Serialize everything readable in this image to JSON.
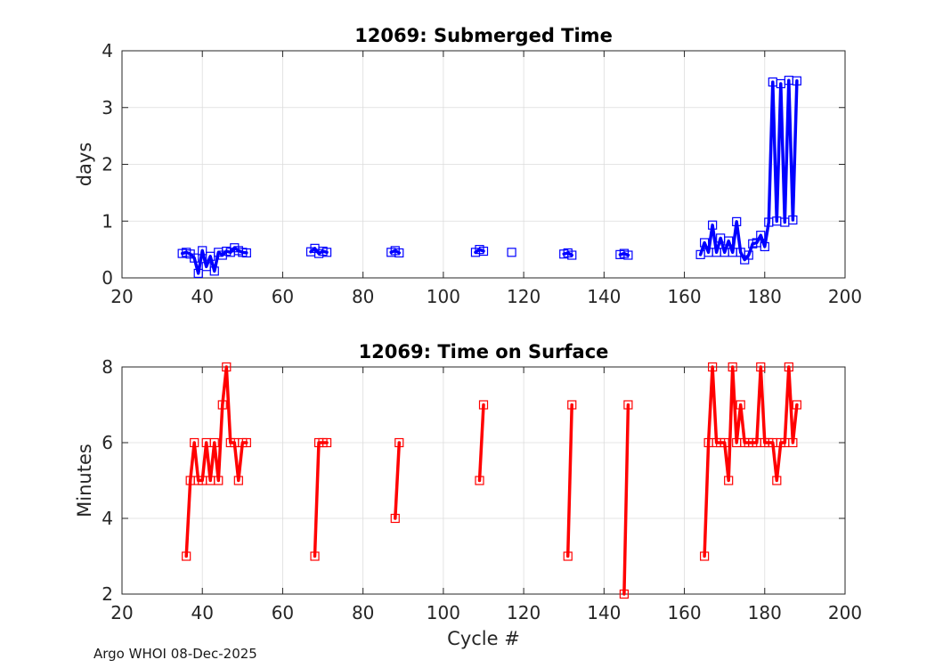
{
  "footer": "Argo WHOI 08-Dec-2025",
  "chart_data": [
    {
      "type": "line",
      "title": "12069: Submerged Time",
      "xlabel": "",
      "ylabel": "days",
      "xlim": [
        20,
        200
      ],
      "ylim": [
        0,
        4
      ],
      "xticks": [
        "20",
        "40",
        "60",
        "80",
        "100",
        "120",
        "140",
        "160",
        "180",
        "200"
      ],
      "yticks": [
        "0",
        "1",
        "2",
        "3",
        "4"
      ],
      "grid": true,
      "color": "#0000ff",
      "marker": "square",
      "segments": [
        [
          [
            35,
            0.43
          ],
          [
            36,
            0.45
          ],
          [
            37,
            0.42
          ],
          [
            38,
            0.35
          ],
          [
            39,
            0.08
          ],
          [
            40,
            0.48
          ],
          [
            41,
            0.2
          ],
          [
            42,
            0.38
          ],
          [
            43,
            0.12
          ],
          [
            44,
            0.45
          ],
          [
            45,
            0.4
          ],
          [
            46,
            0.47
          ],
          [
            47,
            0.45
          ],
          [
            48,
            0.53
          ],
          [
            49,
            0.48
          ],
          [
            50,
            0.45
          ],
          [
            51,
            0.44
          ]
        ],
        [
          [
            67,
            0.46
          ],
          [
            68,
            0.52
          ],
          [
            69,
            0.43
          ],
          [
            70,
            0.47
          ],
          [
            71,
            0.45
          ]
        ],
        [
          [
            87,
            0.45
          ],
          [
            88,
            0.48
          ],
          [
            89,
            0.44
          ]
        ],
        [
          [
            108,
            0.45
          ],
          [
            109,
            0.5
          ],
          [
            110,
            0.47
          ]
        ],
        [
          [
            117,
            0.45
          ]
        ],
        [
          [
            130,
            0.42
          ],
          [
            131,
            0.44
          ],
          [
            132,
            0.4
          ]
        ],
        [
          [
            144,
            0.41
          ],
          [
            145,
            0.43
          ],
          [
            146,
            0.4
          ]
        ],
        [
          [
            164,
            0.41
          ],
          [
            165,
            0.62
          ],
          [
            166,
            0.45
          ],
          [
            167,
            0.93
          ],
          [
            168,
            0.45
          ],
          [
            169,
            0.7
          ],
          [
            170,
            0.45
          ],
          [
            171,
            0.65
          ],
          [
            172,
            0.45
          ],
          [
            173,
            0.99
          ],
          [
            174,
            0.45
          ],
          [
            175,
            0.32
          ],
          [
            176,
            0.4
          ],
          [
            177,
            0.6
          ],
          [
            178,
            0.62
          ],
          [
            179,
            0.75
          ],
          [
            180,
            0.55
          ],
          [
            181,
            0.98
          ],
          [
            182,
            3.45
          ],
          [
            183,
            1.0
          ],
          [
            184,
            3.42
          ],
          [
            185,
            0.98
          ],
          [
            186,
            3.48
          ],
          [
            187,
            1.02
          ],
          [
            188,
            3.47
          ]
        ]
      ]
    },
    {
      "type": "line",
      "title": "12069: Time on Surface",
      "xlabel": "Cycle #",
      "ylabel": "Minutes",
      "xlim": [
        20,
        200
      ],
      "ylim": [
        2,
        8
      ],
      "xticks": [
        "20",
        "40",
        "60",
        "80",
        "100",
        "120",
        "140",
        "160",
        "180",
        "200"
      ],
      "yticks": [
        "2",
        "4",
        "6",
        "8"
      ],
      "grid": true,
      "color": "#ff0000",
      "marker": "square",
      "segments": [
        [
          [
            36,
            3
          ],
          [
            37,
            5
          ],
          [
            38,
            6
          ],
          [
            39,
            5
          ],
          [
            40,
            5
          ],
          [
            41,
            6
          ],
          [
            42,
            5
          ],
          [
            43,
            6
          ],
          [
            44,
            5
          ],
          [
            45,
            7
          ],
          [
            46,
            8
          ],
          [
            47,
            6
          ],
          [
            48,
            6
          ],
          [
            49,
            5
          ],
          [
            50,
            6
          ],
          [
            51,
            6
          ]
        ],
        [
          [
            68,
            3
          ],
          [
            69,
            6
          ],
          [
            70,
            6
          ],
          [
            71,
            6
          ]
        ],
        [
          [
            88,
            4
          ],
          [
            89,
            6
          ]
        ],
        [
          [
            109,
            5
          ],
          [
            110,
            7
          ]
        ],
        [
          [
            131,
            3
          ],
          [
            132,
            7
          ]
        ],
        [
          [
            145,
            2
          ],
          [
            146,
            7
          ]
        ],
        [
          [
            165,
            3
          ],
          [
            166,
            6
          ],
          [
            167,
            8
          ],
          [
            168,
            6
          ],
          [
            169,
            6
          ],
          [
            170,
            6
          ],
          [
            171,
            5
          ],
          [
            172,
            8
          ],
          [
            173,
            6
          ],
          [
            174,
            7
          ],
          [
            175,
            6
          ],
          [
            176,
            6
          ],
          [
            177,
            6
          ],
          [
            178,
            6
          ],
          [
            179,
            8
          ],
          [
            180,
            6
          ],
          [
            181,
            6
          ],
          [
            182,
            6
          ],
          [
            183,
            5
          ],
          [
            184,
            6
          ],
          [
            185,
            6
          ],
          [
            186,
            8
          ],
          [
            187,
            6
          ],
          [
            188,
            7
          ]
        ]
      ]
    }
  ]
}
